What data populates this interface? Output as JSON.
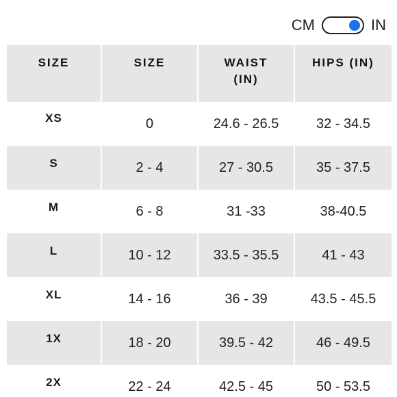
{
  "unit_toggle": {
    "left_label": "CM",
    "right_label": "IN",
    "selected": "IN",
    "knob_color": "#1a73e8"
  },
  "table": {
    "headers": [
      "SIZE",
      "SIZE",
      "WAIST (IN)",
      "HIPS (IN)"
    ],
    "rows": [
      {
        "label": "XS",
        "size": "0",
        "waist": "24.6 - 26.5",
        "hips": "32 - 34.5"
      },
      {
        "label": "S",
        "size": "2 - 4",
        "waist": "27 - 30.5",
        "hips": "35 - 37.5"
      },
      {
        "label": "M",
        "size": "6 - 8",
        "waist": "31 -33",
        "hips": "38-40.5"
      },
      {
        "label": "L",
        "size": "10 - 12",
        "waist": "33.5 - 35.5",
        "hips": "41 - 43"
      },
      {
        "label": "XL",
        "size": "14 - 16",
        "waist": "36 - 39",
        "hips": "43.5 - 45.5"
      },
      {
        "label": "1X",
        "size": "18 - 20",
        "waist": "39.5 - 42",
        "hips": "46 - 49.5"
      },
      {
        "label": "2X",
        "size": "22 - 24",
        "waist": "42.5 - 45",
        "hips": "50 - 53.5"
      }
    ],
    "shade_color": "#e6e6e6"
  }
}
